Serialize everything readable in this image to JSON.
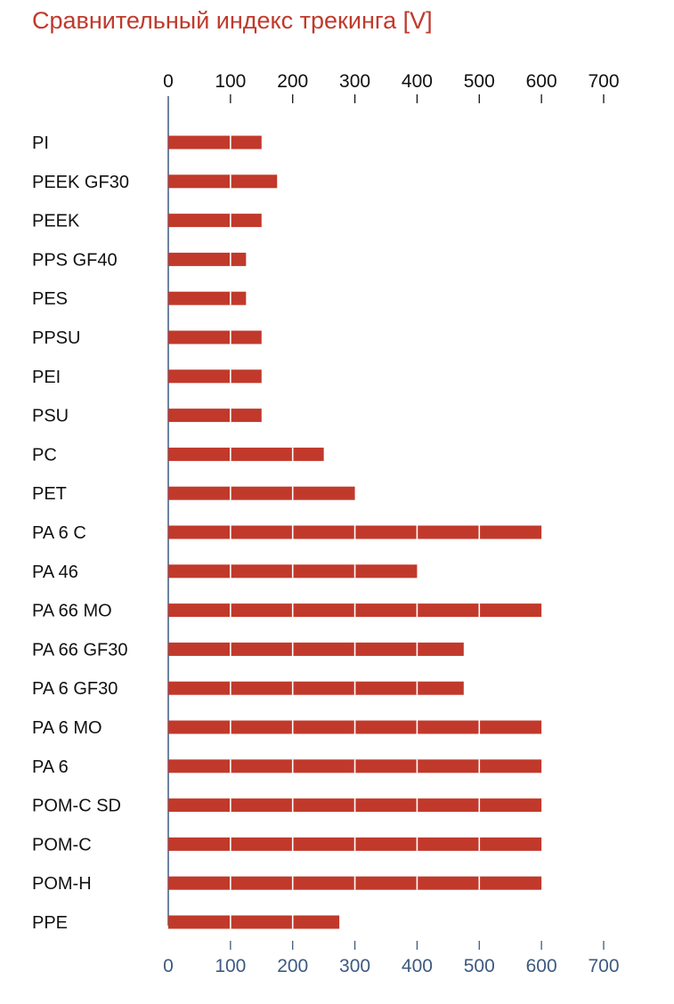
{
  "chart_data": {
    "type": "bar",
    "orientation": "horizontal",
    "title": "Сравнительный индекс трекинга [V]",
    "xlabel": "",
    "ylabel": "",
    "xlim": [
      0,
      700
    ],
    "ticks": [
      "0",
      "100",
      "200",
      "300",
      "400",
      "500",
      "600",
      "700"
    ],
    "categories": [
      "PI",
      "PEEK GF30",
      "PEEK",
      "PPS GF40",
      "PES",
      "PPSU",
      "PEI",
      "PSU",
      "PC",
      "PET",
      "PA 6 C",
      "PA 46",
      "PA 66 MO",
      "PA 66 GF30",
      "PA 6 GF30",
      "PA 6 MO",
      "PA 6",
      "POM-C SD",
      "POM-C",
      "POM-H",
      "PPE"
    ],
    "values": [
      150,
      175,
      150,
      125,
      125,
      150,
      150,
      150,
      250,
      300,
      600,
      400,
      600,
      475,
      475,
      600,
      600,
      600,
      600,
      600,
      275
    ],
    "grid": false,
    "axis_ticks_top": true,
    "axis_ticks_bottom": true
  },
  "colors": {
    "bar": "#c1392b",
    "title": "#c1392b",
    "axis": "#3d5a80",
    "bottom_ticks": "#3d5a80",
    "top_ticks": "#111111",
    "category_text": "#111111"
  }
}
